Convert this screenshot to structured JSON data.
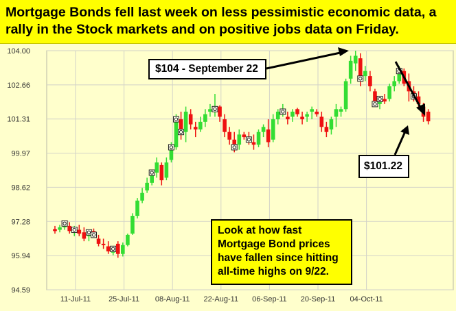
{
  "headline": "Mortgage Bonds fell last week on less pessimistic economic data, a rally in the Stock markets and on positive jobs data on Friday.",
  "annotations": {
    "high_label": "$104 - September 22",
    "low_label": "$101.22",
    "note": "Look at how fast\nMortgage Bond prices\nhave fallen since hitting\nall-time highs on 9/22."
  },
  "colors": {
    "up": "#33dd33",
    "down": "#ee1111",
    "grid": "#d2d2c8",
    "headline_bg": "#ffff00",
    "chart_bg": "#ffffcc"
  },
  "chart_data": {
    "type": "candlestick",
    "ylim": [
      94.59,
      104.0
    ],
    "yticks": [
      "104.00",
      "102.66",
      "101.31",
      "99.97",
      "98.62",
      "97.28",
      "95.94",
      "94.59"
    ],
    "xticks": [
      "11-Jul-11",
      "25-Jul-11",
      "08-Aug-11",
      "22-Aug-11",
      "06-Sep-11",
      "20-Sep-11",
      "04-Oct-11"
    ],
    "grid": true,
    "candles": [
      {
        "o": 96.98,
        "h": 97.1,
        "l": 96.8,
        "c": 96.9
      },
      {
        "o": 96.95,
        "h": 97.15,
        "l": 96.85,
        "c": 97.05
      },
      {
        "o": 97.05,
        "h": 97.3,
        "l": 96.95,
        "c": 97.2
      },
      {
        "o": 97.1,
        "h": 97.25,
        "l": 96.8,
        "c": 96.9
      },
      {
        "o": 96.9,
        "h": 97.1,
        "l": 96.7,
        "c": 96.95
      },
      {
        "o": 96.95,
        "h": 97.15,
        "l": 96.7,
        "c": 96.8
      },
      {
        "o": 96.85,
        "h": 97.05,
        "l": 96.5,
        "c": 96.6
      },
      {
        "o": 96.7,
        "h": 96.95,
        "l": 96.5,
        "c": 96.85
      },
      {
        "o": 96.9,
        "h": 97.0,
        "l": 96.7,
        "c": 96.75
      },
      {
        "o": 96.6,
        "h": 96.75,
        "l": 96.3,
        "c": 96.4
      },
      {
        "o": 96.4,
        "h": 96.6,
        "l": 96.2,
        "c": 96.35
      },
      {
        "o": 96.3,
        "h": 96.5,
        "l": 96.0,
        "c": 96.1
      },
      {
        "o": 96.05,
        "h": 96.3,
        "l": 95.95,
        "c": 96.2
      },
      {
        "o": 96.4,
        "h": 96.5,
        "l": 95.85,
        "c": 96.0
      },
      {
        "o": 96.0,
        "h": 96.45,
        "l": 95.9,
        "c": 96.35
      },
      {
        "o": 96.35,
        "h": 96.8,
        "l": 96.3,
        "c": 96.75
      },
      {
        "o": 96.8,
        "h": 97.6,
        "l": 96.75,
        "c": 97.5
      },
      {
        "o": 97.5,
        "h": 98.2,
        "l": 97.4,
        "c": 98.1
      },
      {
        "o": 98.1,
        "h": 98.6,
        "l": 98.0,
        "c": 98.4
      },
      {
        "o": 98.5,
        "h": 99.0,
        "l": 98.4,
        "c": 98.8
      },
      {
        "o": 98.8,
        "h": 99.3,
        "l": 98.7,
        "c": 99.2
      },
      {
        "o": 99.2,
        "h": 99.8,
        "l": 99.0,
        "c": 99.6
      },
      {
        "o": 99.5,
        "h": 99.6,
        "l": 98.7,
        "c": 98.9
      },
      {
        "o": 99.0,
        "h": 99.8,
        "l": 98.9,
        "c": 99.6
      },
      {
        "o": 99.7,
        "h": 100.4,
        "l": 99.6,
        "c": 100.2
      },
      {
        "o": 100.2,
        "h": 101.5,
        "l": 100.1,
        "c": 101.3
      },
      {
        "o": 101.3,
        "h": 101.6,
        "l": 100.5,
        "c": 100.8
      },
      {
        "o": 100.8,
        "h": 101.8,
        "l": 100.4,
        "c": 101.6
      },
      {
        "o": 101.5,
        "h": 101.7,
        "l": 100.9,
        "c": 101.1
      },
      {
        "o": 101.0,
        "h": 101.2,
        "l": 100.6,
        "c": 100.9
      },
      {
        "o": 100.9,
        "h": 101.4,
        "l": 100.8,
        "c": 101.2
      },
      {
        "o": 101.2,
        "h": 101.7,
        "l": 101.0,
        "c": 101.5
      },
      {
        "o": 101.6,
        "h": 101.9,
        "l": 101.4,
        "c": 101.7
      },
      {
        "o": 101.7,
        "h": 102.3,
        "l": 101.4,
        "c": 101.7
      },
      {
        "o": 101.8,
        "h": 101.85,
        "l": 101.2,
        "c": 101.4
      },
      {
        "o": 101.3,
        "h": 101.5,
        "l": 100.6,
        "c": 100.8
      },
      {
        "o": 100.8,
        "h": 101.0,
        "l": 100.3,
        "c": 100.5
      },
      {
        "o": 100.5,
        "h": 100.8,
        "l": 100.0,
        "c": 100.2
      },
      {
        "o": 100.3,
        "h": 100.9,
        "l": 100.1,
        "c": 100.7
      },
      {
        "o": 100.7,
        "h": 100.8,
        "l": 100.5,
        "c": 100.6
      },
      {
        "o": 100.6,
        "h": 100.8,
        "l": 100.3,
        "c": 100.5
      },
      {
        "o": 100.4,
        "h": 100.7,
        "l": 100.1,
        "c": 100.3
      },
      {
        "o": 100.3,
        "h": 100.9,
        "l": 100.2,
        "c": 100.8
      },
      {
        "o": 100.8,
        "h": 101.1,
        "l": 100.6,
        "c": 101.0
      },
      {
        "o": 100.9,
        "h": 101.3,
        "l": 100.2,
        "c": 100.4
      },
      {
        "o": 100.5,
        "h": 101.5,
        "l": 100.4,
        "c": 101.3
      },
      {
        "o": 101.3,
        "h": 101.7,
        "l": 101.1,
        "c": 101.6
      },
      {
        "o": 101.6,
        "h": 101.9,
        "l": 101.4,
        "c": 101.6
      },
      {
        "o": 101.4,
        "h": 101.6,
        "l": 101.1,
        "c": 101.3
      },
      {
        "o": 101.4,
        "h": 101.7,
        "l": 101.2,
        "c": 101.6
      },
      {
        "o": 101.7,
        "h": 101.75,
        "l": 101.4,
        "c": 101.5
      },
      {
        "o": 101.4,
        "h": 101.6,
        "l": 101.1,
        "c": 101.3
      },
      {
        "o": 101.4,
        "h": 101.6,
        "l": 101.2,
        "c": 101.5
      },
      {
        "o": 101.6,
        "h": 101.8,
        "l": 101.3,
        "c": 101.7
      },
      {
        "o": 101.6,
        "h": 101.7,
        "l": 101.4,
        "c": 101.5
      },
      {
        "o": 101.4,
        "h": 101.6,
        "l": 100.8,
        "c": 101.0
      },
      {
        "o": 101.0,
        "h": 101.2,
        "l": 100.6,
        "c": 100.8
      },
      {
        "o": 100.9,
        "h": 101.4,
        "l": 100.7,
        "c": 101.3
      },
      {
        "o": 101.4,
        "h": 101.9,
        "l": 101.0,
        "c": 101.7
      },
      {
        "o": 101.6,
        "h": 101.8,
        "l": 101.4,
        "c": 101.7
      },
      {
        "o": 101.7,
        "h": 102.9,
        "l": 101.6,
        "c": 102.8
      },
      {
        "o": 102.9,
        "h": 103.8,
        "l": 102.7,
        "c": 103.6
      },
      {
        "o": 103.5,
        "h": 104.0,
        "l": 103.2,
        "c": 103.8
      },
      {
        "o": 103.7,
        "h": 103.9,
        "l": 102.6,
        "c": 102.9
      },
      {
        "o": 103.0,
        "h": 103.4,
        "l": 102.8,
        "c": 103.2
      },
      {
        "o": 103.0,
        "h": 103.2,
        "l": 102.4,
        "c": 102.6
      },
      {
        "o": 102.4,
        "h": 102.5,
        "l": 101.8,
        "c": 101.9
      },
      {
        "o": 101.9,
        "h": 102.2,
        "l": 101.7,
        "c": 102.1
      },
      {
        "o": 102.1,
        "h": 102.3,
        "l": 101.9,
        "c": 102.0
      },
      {
        "o": 102.1,
        "h": 102.7,
        "l": 102.0,
        "c": 102.6
      },
      {
        "o": 102.6,
        "h": 103.0,
        "l": 102.4,
        "c": 102.8
      },
      {
        "o": 102.8,
        "h": 103.4,
        "l": 102.7,
        "c": 103.2
      },
      {
        "o": 103.2,
        "h": 103.3,
        "l": 102.6,
        "c": 102.7
      },
      {
        "o": 102.8,
        "h": 103.1,
        "l": 102.0,
        "c": 102.4
      },
      {
        "o": 102.4,
        "h": 102.6,
        "l": 102.0,
        "c": 102.2
      },
      {
        "o": 102.2,
        "h": 102.4,
        "l": 101.7,
        "c": 101.9
      },
      {
        "o": 101.8,
        "h": 101.95,
        "l": 101.2,
        "c": 101.4
      },
      {
        "o": 101.6,
        "h": 101.7,
        "l": 101.1,
        "c": 101.22
      }
    ],
    "markers": [
      2,
      4,
      7,
      8,
      12,
      20,
      24,
      25,
      26,
      33,
      37,
      40,
      47,
      63,
      66,
      67,
      71,
      74
    ]
  }
}
